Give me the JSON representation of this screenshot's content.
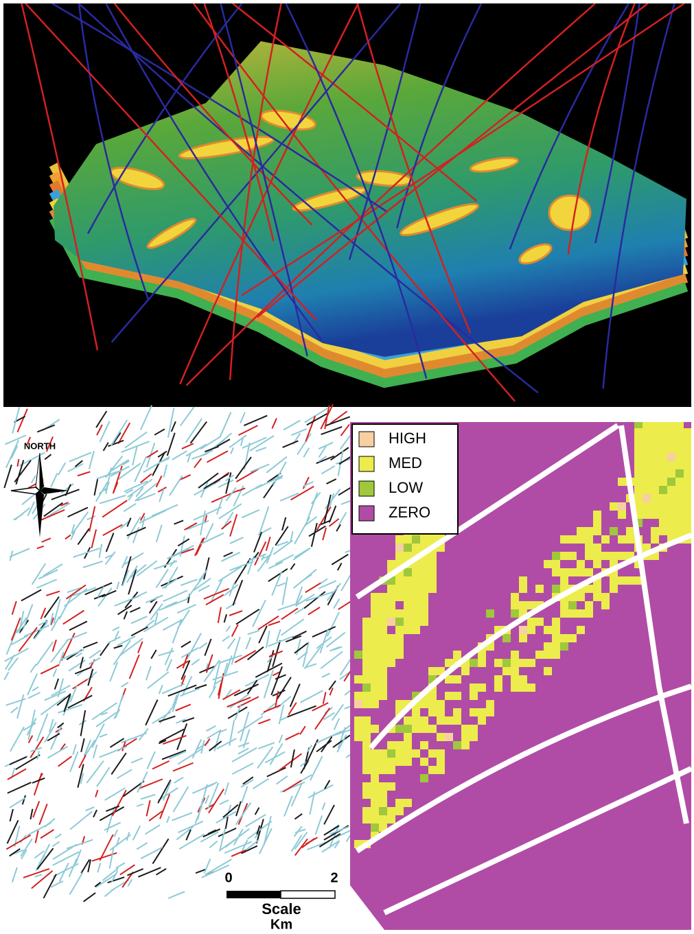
{
  "compass": {
    "label": "NORTH"
  },
  "legend": {
    "items": [
      {
        "label": "HIGH",
        "color": "#f7cfa0"
      },
      {
        "label": "MED",
        "color": "#ecec4c"
      },
      {
        "label": "LOW",
        "color": "#9fc83c"
      },
      {
        "label": "ZERO",
        "color": "#b04ca6"
      }
    ]
  },
  "scale_bar": {
    "ticks": [
      "0",
      "2"
    ],
    "title": "Scale",
    "unit": "Km"
  }
}
